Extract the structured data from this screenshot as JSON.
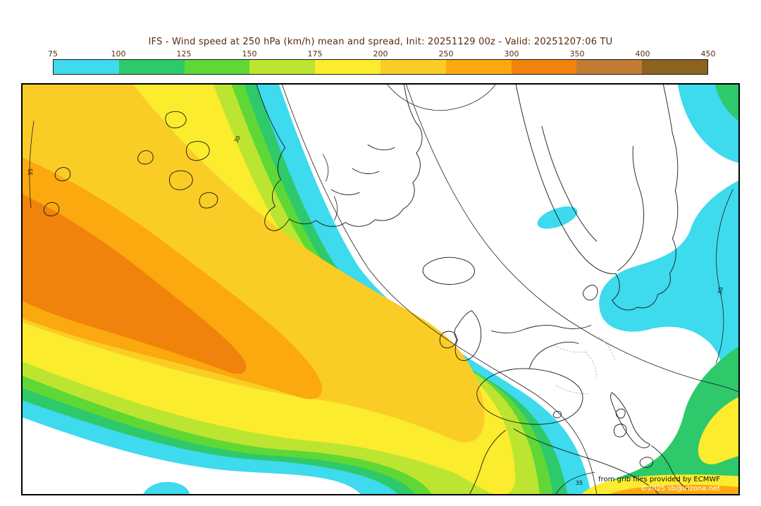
{
  "title": "IFS - Wind speed at 250 hPa (km/h) mean and spread, Init: 20251129 00z - Valid: 20251207:06 TU",
  "colors": {
    "title_text": "#572d10",
    "tick_text": "#572d10",
    "coastline": "#161616"
  },
  "colorbar": {
    "ticks": [
      "75",
      "100",
      "125",
      "150",
      "175",
      "200",
      "250",
      "300",
      "350",
      "400",
      "450"
    ],
    "segment_colors": [
      "#3EDAEE",
      "#2EC96B",
      "#5FD836",
      "#BCE531",
      "#FBEC2E",
      "#FACD26",
      "#FBA90E",
      "#F0830B",
      "#C07C33",
      "#8C6220"
    ]
  },
  "map_colors": {
    "cyan": "#3EDAEE",
    "green": "#2EC96B",
    "light_green": "#5FD836",
    "chartreuse": "#BCE531",
    "yellow": "#FBEC2E",
    "gold": "#FACD26",
    "orange": "#FBA90E",
    "deep_orange": "#F0830B"
  },
  "contours": {
    "labels": [
      "35",
      "30",
      "30",
      "35"
    ]
  },
  "attribution": {
    "provider": "from grib files provided by ECMWF",
    "copyright": "©2025 sb@irizona.net"
  }
}
